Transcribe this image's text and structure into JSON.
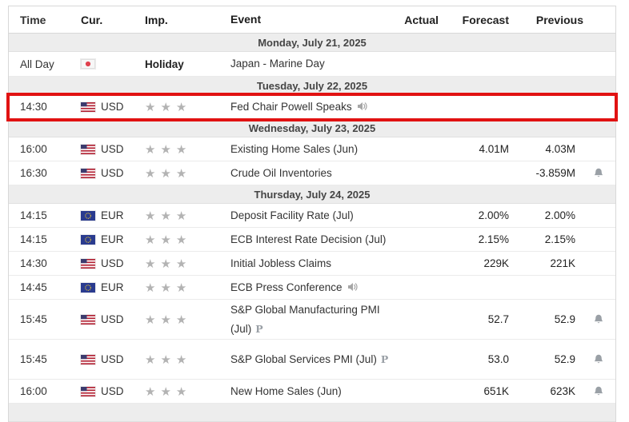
{
  "header": {
    "time": "Time",
    "currency": "Cur.",
    "importance": "Imp.",
    "event": "Event",
    "actual": "Actual",
    "forecast": "Forecast",
    "previous": "Previous"
  },
  "colors": {
    "highlight_border": "#e11212",
    "date_row_bg": "#ededed",
    "star_gray": "#b3b3b3",
    "icon_gray": "#a6a6a6"
  },
  "icons": {
    "star_glyph": "★",
    "prelim_glyph": "P"
  },
  "rows": [
    {
      "type": "date",
      "label": "Monday, July 21, 2025"
    },
    {
      "type": "event",
      "time": "All Day",
      "flag": "japan-flag",
      "currency": "",
      "importance_text": "Holiday",
      "stars": 0,
      "event": "Japan - Marine Day",
      "speaker": false,
      "prelim": false,
      "actual": "",
      "forecast": "",
      "previous": "",
      "bell": false,
      "allday": true
    },
    {
      "type": "date",
      "label": "Tuesday, July 22, 2025"
    },
    {
      "type": "event",
      "time": "14:30",
      "flag": "us-flag",
      "currency": "USD",
      "stars": 3,
      "event": "Fed Chair Powell Speaks",
      "speaker": true,
      "prelim": false,
      "actual": "",
      "forecast": "",
      "previous": "",
      "bell": false,
      "highlighted": true
    },
    {
      "type": "date",
      "label": "Wednesday, July 23, 2025"
    },
    {
      "type": "event",
      "time": "16:00",
      "flag": "us-flag",
      "currency": "USD",
      "stars": 3,
      "event": "Existing Home Sales (Jun)",
      "speaker": false,
      "prelim": false,
      "actual": "",
      "forecast": "4.01M",
      "previous": "4.03M",
      "bell": false
    },
    {
      "type": "event",
      "time": "16:30",
      "flag": "us-flag",
      "currency": "USD",
      "stars": 3,
      "event": "Crude Oil Inventories",
      "speaker": false,
      "prelim": false,
      "actual": "",
      "forecast": "",
      "previous": "-3.859M",
      "bell": true
    },
    {
      "type": "date",
      "label": "Thursday, July 24, 2025"
    },
    {
      "type": "event",
      "time": "14:15",
      "flag": "eu-flag",
      "currency": "EUR",
      "stars": 3,
      "event": "Deposit Facility Rate (Jul)",
      "speaker": false,
      "prelim": false,
      "actual": "",
      "forecast": "2.00%",
      "previous": "2.00%",
      "bell": false
    },
    {
      "type": "event",
      "time": "14:15",
      "flag": "eu-flag",
      "currency": "EUR",
      "stars": 3,
      "event": "ECB Interest Rate Decision (Jul)",
      "speaker": false,
      "prelim": false,
      "actual": "",
      "forecast": "2.15%",
      "previous": "2.15%",
      "bell": false
    },
    {
      "type": "event",
      "time": "14:30",
      "flag": "us-flag",
      "currency": "USD",
      "stars": 3,
      "event": "Initial Jobless Claims",
      "speaker": false,
      "prelim": false,
      "actual": "",
      "forecast": "229K",
      "previous": "221K",
      "bell": false
    },
    {
      "type": "event",
      "time": "14:45",
      "flag": "eu-flag",
      "currency": "EUR",
      "stars": 3,
      "event": "ECB Press Conference",
      "speaker": true,
      "prelim": false,
      "actual": "",
      "forecast": "",
      "previous": "",
      "bell": false
    },
    {
      "type": "event",
      "time": "15:45",
      "flag": "us-flag",
      "currency": "USD",
      "stars": 3,
      "event": "S&P Global Manufacturing PMI (Jul)",
      "speaker": false,
      "prelim": true,
      "actual": "",
      "forecast": "52.7",
      "previous": "52.9",
      "bell": true,
      "tall": true
    },
    {
      "type": "event",
      "time": "15:45",
      "flag": "us-flag",
      "currency": "USD",
      "stars": 3,
      "event": "S&P Global Services PMI (Jul)",
      "speaker": false,
      "prelim": true,
      "actual": "",
      "forecast": "53.0",
      "previous": "52.9",
      "bell": true,
      "tall": true
    },
    {
      "type": "event",
      "time": "16:00",
      "flag": "us-flag",
      "currency": "USD",
      "stars": 3,
      "event": "New Home Sales (Jun)",
      "speaker": false,
      "prelim": false,
      "actual": "",
      "forecast": "651K",
      "previous": "623K",
      "bell": true
    },
    {
      "type": "date",
      "label": ""
    }
  ]
}
